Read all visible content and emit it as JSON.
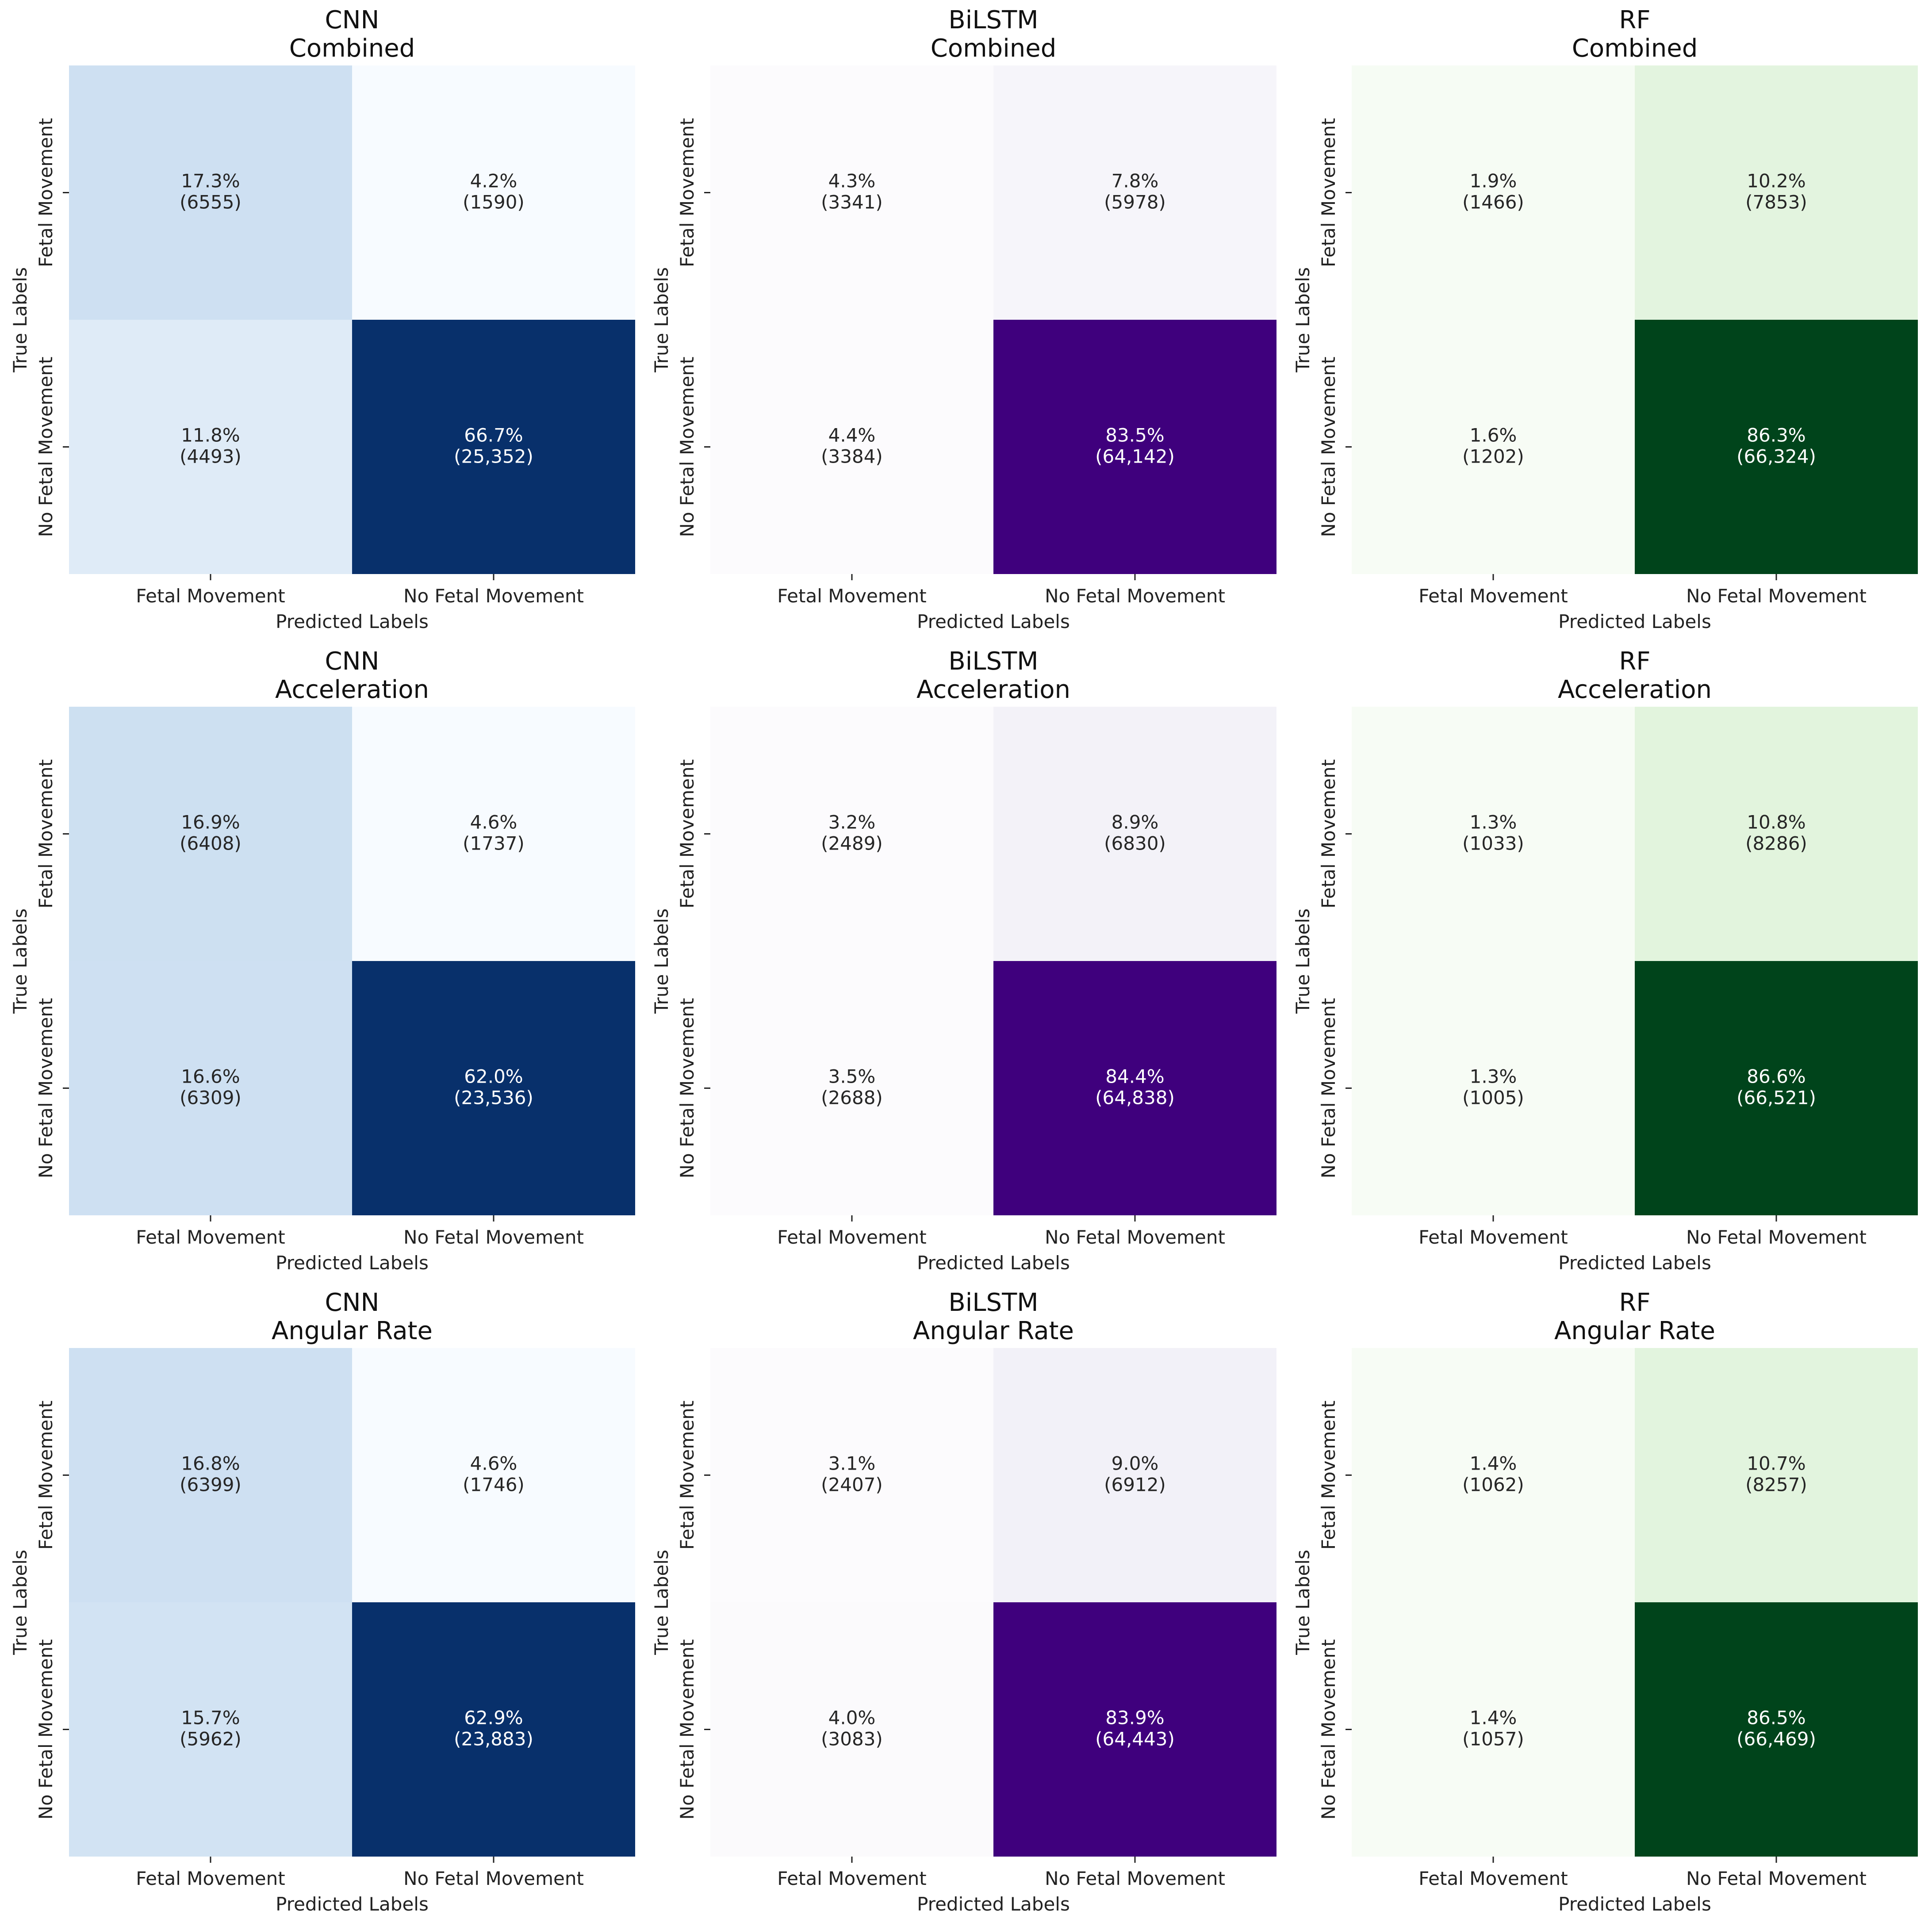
{
  "chart_data": [
    {
      "type": "heatmap",
      "model": "CNN",
      "subset": "Combined",
      "cmap": "blues",
      "xlabel": "Predicted Labels",
      "ylabel": "True Labels",
      "x_categories": [
        "Fetal Movement",
        "No Fetal Movement"
      ],
      "y_categories": [
        "Fetal Movement",
        "No Fetal Movement"
      ],
      "percent_values": [
        [
          17.3,
          4.2
        ],
        [
          11.8,
          66.7
        ]
      ],
      "counts": [
        [
          6555,
          1590
        ],
        [
          4493,
          25352
        ]
      ],
      "cell_labels": [
        [
          "17.3%\n(6555)",
          "4.2%\n(1590)"
        ],
        [
          "11.8%\n(4493)",
          "66.7%\n(25,352)"
        ]
      ]
    },
    {
      "type": "heatmap",
      "model": "BiLSTM",
      "subset": "Combined",
      "cmap": "purples",
      "xlabel": "Predicted Labels",
      "ylabel": "True Labels",
      "x_categories": [
        "Fetal Movement",
        "No Fetal Movement"
      ],
      "y_categories": [
        "Fetal Movement",
        "No Fetal Movement"
      ],
      "percent_values": [
        [
          4.3,
          7.8
        ],
        [
          4.4,
          83.5
        ]
      ],
      "counts": [
        [
          3341,
          5978
        ],
        [
          3384,
          64142
        ]
      ],
      "cell_labels": [
        [
          "4.3%\n(3341)",
          "7.8%\n(5978)"
        ],
        [
          "4.4%\n(3384)",
          "83.5%\n(64,142)"
        ]
      ]
    },
    {
      "type": "heatmap",
      "model": "RF",
      "subset": "Combined",
      "cmap": "greens",
      "xlabel": "Predicted Labels",
      "ylabel": "True Labels",
      "x_categories": [
        "Fetal Movement",
        "No Fetal Movement"
      ],
      "y_categories": [
        "Fetal Movement",
        "No Fetal Movement"
      ],
      "percent_values": [
        [
          1.9,
          10.2
        ],
        [
          1.6,
          86.3
        ]
      ],
      "counts": [
        [
          1466,
          7853
        ],
        [
          1202,
          66324
        ]
      ],
      "cell_labels": [
        [
          "1.9%\n(1466)",
          "10.2%\n(7853)"
        ],
        [
          "1.6%\n(1202)",
          "86.3%\n(66,324)"
        ]
      ]
    },
    {
      "type": "heatmap",
      "model": "CNN",
      "subset": "Acceleration",
      "cmap": "blues",
      "xlabel": "Predicted Labels",
      "ylabel": "True Labels",
      "x_categories": [
        "Fetal Movement",
        "No Fetal Movement"
      ],
      "y_categories": [
        "Fetal Movement",
        "No Fetal Movement"
      ],
      "percent_values": [
        [
          16.9,
          4.6
        ],
        [
          16.6,
          62.0
        ]
      ],
      "counts": [
        [
          6408,
          1737
        ],
        [
          6309,
          23536
        ]
      ],
      "cell_labels": [
        [
          "16.9%\n(6408)",
          "4.6%\n(1737)"
        ],
        [
          "16.6%\n(6309)",
          "62.0%\n(23,536)"
        ]
      ]
    },
    {
      "type": "heatmap",
      "model": "BiLSTM",
      "subset": "Acceleration",
      "cmap": "purples",
      "xlabel": "Predicted Labels",
      "ylabel": "True Labels",
      "x_categories": [
        "Fetal Movement",
        "No Fetal Movement"
      ],
      "y_categories": [
        "Fetal Movement",
        "No Fetal Movement"
      ],
      "percent_values": [
        [
          3.2,
          8.9
        ],
        [
          3.5,
          84.4
        ]
      ],
      "counts": [
        [
          2489,
          6830
        ],
        [
          2688,
          64838
        ]
      ],
      "cell_labels": [
        [
          "3.2%\n(2489)",
          "8.9%\n(6830)"
        ],
        [
          "3.5%\n(2688)",
          "84.4%\n(64,838)"
        ]
      ]
    },
    {
      "type": "heatmap",
      "model": "RF",
      "subset": "Acceleration",
      "cmap": "greens",
      "xlabel": "Predicted Labels",
      "ylabel": "True Labels",
      "x_categories": [
        "Fetal Movement",
        "No Fetal Movement"
      ],
      "y_categories": [
        "Fetal Movement",
        "No Fetal Movement"
      ],
      "percent_values": [
        [
          1.3,
          10.8
        ],
        [
          1.3,
          86.6
        ]
      ],
      "counts": [
        [
          1033,
          8286
        ],
        [
          1005,
          66521
        ]
      ],
      "cell_labels": [
        [
          "1.3%\n(1033)",
          "10.8%\n(8286)"
        ],
        [
          "1.3%\n(1005)",
          "86.6%\n(66,521)"
        ]
      ]
    },
    {
      "type": "heatmap",
      "model": "CNN",
      "subset": "Angular Rate",
      "cmap": "blues",
      "xlabel": "Predicted Labels",
      "ylabel": "True Labels",
      "x_categories": [
        "Fetal Movement",
        "No Fetal Movement"
      ],
      "y_categories": [
        "Fetal Movement",
        "No Fetal Movement"
      ],
      "percent_values": [
        [
          16.8,
          4.6
        ],
        [
          15.7,
          62.9
        ]
      ],
      "counts": [
        [
          6399,
          1746
        ],
        [
          5962,
          23883
        ]
      ],
      "cell_labels": [
        [
          "16.8%\n(6399)",
          "4.6%\n(1746)"
        ],
        [
          "15.7%\n(5962)",
          "62.9%\n(23,883)"
        ]
      ]
    },
    {
      "type": "heatmap",
      "model": "BiLSTM",
      "subset": "Angular Rate",
      "cmap": "purples",
      "xlabel": "Predicted Labels",
      "ylabel": "True Labels",
      "x_categories": [
        "Fetal Movement",
        "No Fetal Movement"
      ],
      "y_categories": [
        "Fetal Movement",
        "No Fetal Movement"
      ],
      "percent_values": [
        [
          3.1,
          9.0
        ],
        [
          4.0,
          83.9
        ]
      ],
      "counts": [
        [
          2407,
          6912
        ],
        [
          3083,
          64443
        ]
      ],
      "cell_labels": [
        [
          "3.1%\n(2407)",
          "9.0%\n(6912)"
        ],
        [
          "4.0%\n(3083)",
          "83.9%\n(64,443)"
        ]
      ]
    },
    {
      "type": "heatmap",
      "model": "RF",
      "subset": "Angular Rate",
      "cmap": "greens",
      "xlabel": "Predicted Labels",
      "ylabel": "True Labels",
      "x_categories": [
        "Fetal Movement",
        "No Fetal Movement"
      ],
      "y_categories": [
        "Fetal Movement",
        "No Fetal Movement"
      ],
      "percent_values": [
        [
          1.4,
          10.7
        ],
        [
          1.4,
          86.5
        ]
      ],
      "counts": [
        [
          1062,
          8257
        ],
        [
          1057,
          66469
        ]
      ],
      "cell_labels": [
        [
          "1.4%\n(1062)",
          "10.7%\n(8257)"
        ],
        [
          "1.4%\n(1057)",
          "86.5%\n(66,469)"
        ]
      ]
    }
  ],
  "colormaps": {
    "blues": {
      "min": "#f7fbff",
      "mid": "#c6dbef",
      "max": "#08306b"
    },
    "purples": {
      "min": "#fcfbfd",
      "mid": "#dadaeb",
      "max": "#3f007d"
    },
    "greens": {
      "min": "#f7fcf5",
      "mid": "#c7e9c0",
      "max": "#00441b"
    }
  },
  "text_colors": {
    "light": "#ffffff",
    "dark": "#262626"
  }
}
